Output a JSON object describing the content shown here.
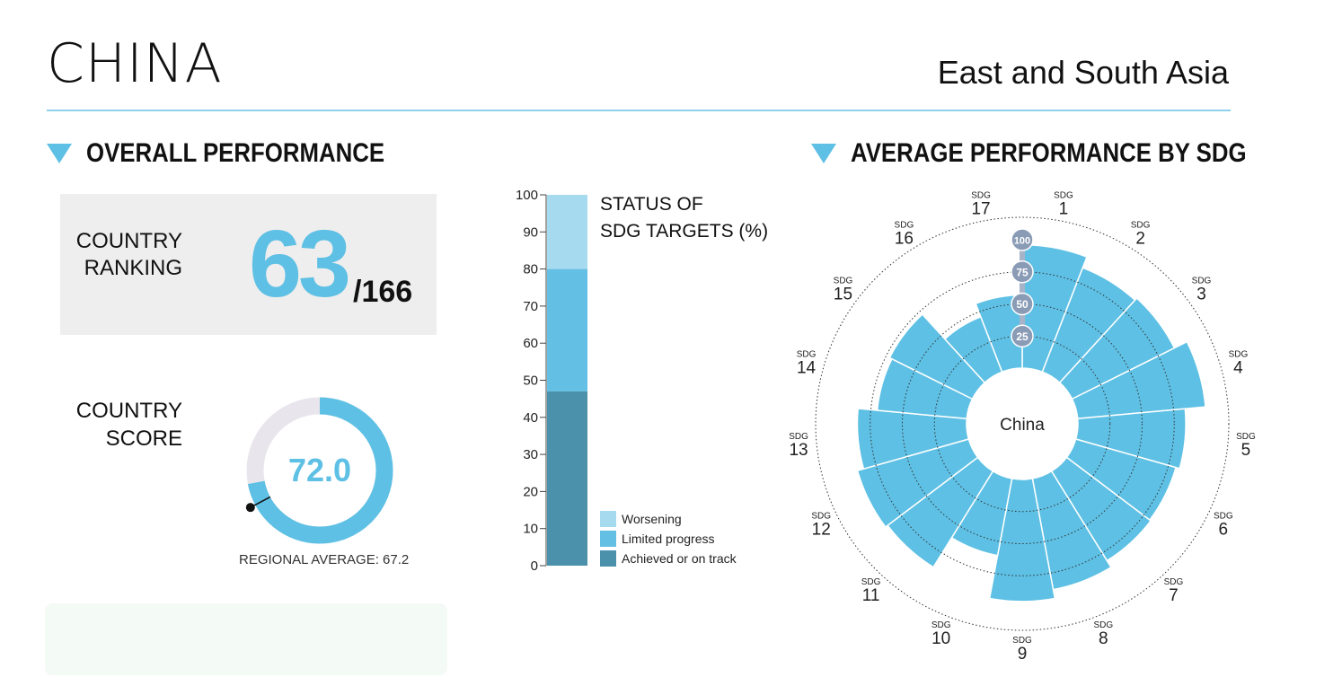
{
  "header": {
    "country": "CHINA",
    "region": "East and South Asia"
  },
  "overall": {
    "heading": "OVERALL PERFORMANCE",
    "ranking_label_1": "COUNTRY",
    "ranking_label_2": "RANKING",
    "rank": "63",
    "rank_total": "/166",
    "score_label_1": "COUNTRY",
    "score_label_2": "SCORE",
    "score": "72.0",
    "regional_average_text": "REGIONAL AVERAGE: 67.2"
  },
  "colors": {
    "accent": "#5ec0e4",
    "worsening": "#a6dbef",
    "limited": "#63bfe4",
    "achieved": "#4b91ab",
    "gauge_track": "#e8e6ec",
    "dial_label": "#8a9bb5"
  },
  "chart_data": [
    {
      "type": "pie",
      "title": "COUNTRY SCORE",
      "values": [
        72.0
      ],
      "max": 100,
      "label": "72.0",
      "regional_average": 67.2,
      "regional_average_label": "REGIONAL AVERAGE: 67.2"
    },
    {
      "type": "bar",
      "stacked": true,
      "title_line1": "STATUS OF",
      "title_line2": "SDG TARGETS (%)",
      "ylim": [
        0,
        100
      ],
      "yticks": [
        "0",
        "10",
        "20",
        "30",
        "40",
        "50",
        "60",
        "70",
        "80",
        "90",
        "100"
      ],
      "series": [
        {
          "name": "Achieved or on track",
          "values": [
            47
          ],
          "color": "#4b91ab"
        },
        {
          "name": "Limited progress",
          "values": [
            33
          ],
          "color": "#63bfe4"
        },
        {
          "name": "Worsening",
          "values": [
            20
          ],
          "color": "#a6dbef"
        }
      ],
      "legend": [
        "Worsening",
        "Limited progress",
        "Achieved or on track"
      ]
    },
    {
      "type": "bar",
      "polar": true,
      "title": "AVERAGE PERFORMANCE BY SDG",
      "center_label": "China",
      "rlim": [
        0,
        100
      ],
      "rings": [
        "25",
        "50",
        "75",
        "100"
      ],
      "sdg_prefix": "SDG",
      "categories": [
        "1",
        "2",
        "3",
        "4",
        "5",
        "6",
        "7",
        "8",
        "9",
        "10",
        "11",
        "12",
        "13",
        "14",
        "15",
        "16",
        "17"
      ],
      "values": [
        96,
        87,
        89,
        100,
        84,
        81,
        82,
        88,
        95,
        61,
        88,
        90,
        85,
        70,
        72,
        46,
        57
      ]
    }
  ]
}
